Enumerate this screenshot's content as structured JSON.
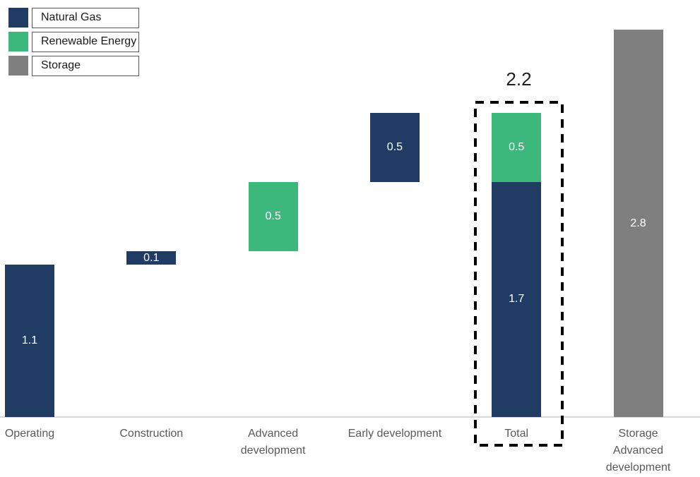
{
  "palette": {
    "natural_gas": "#203C64",
    "renewable_energy": "#3CB87C",
    "storage": "#7F7F7F",
    "axis_line": "#D9D9D9",
    "axis_label_text": "#595959"
  },
  "legend": {
    "items": [
      {
        "label": "Natural Gas",
        "series": "natural_gas"
      },
      {
        "label": "Renewable Energy",
        "series": "renewable_energy"
      },
      {
        "label": "Storage",
        "series": "storage"
      }
    ]
  },
  "chart_data": {
    "type": "bar",
    "subtype": "waterfall-stacked",
    "title": "",
    "xlabel": "",
    "ylabel": "",
    "value_axis_visible": false,
    "gridlines": false,
    "legend_position": "top-left",
    "ylim": [
      0,
      3.0
    ],
    "series_names": [
      "Natural Gas",
      "Renewable Energy",
      "Storage"
    ],
    "categories": [
      {
        "name": "Operating",
        "label_lines": [
          "Operating"
        ],
        "segments": [
          {
            "series": "natural_gas",
            "start": 0,
            "end": 1.1,
            "label": "1.1"
          }
        ]
      },
      {
        "name": "Construction",
        "label_lines": [
          "Construction"
        ],
        "segments": [
          {
            "series": "natural_gas",
            "start": 1.1,
            "end": 1.2,
            "label": "0.1"
          }
        ]
      },
      {
        "name": "Advanced development",
        "label_lines": [
          "Advanced",
          "development"
        ],
        "segments": [
          {
            "series": "renewable_energy",
            "start": 1.2,
            "end": 1.7,
            "label": "0.5"
          }
        ]
      },
      {
        "name": "Early development",
        "label_lines": [
          "Early development"
        ],
        "segments": [
          {
            "series": "natural_gas",
            "start": 1.7,
            "end": 2.2,
            "label": "0.5"
          }
        ]
      },
      {
        "name": "Total",
        "label_lines": [
          "Total"
        ],
        "highlighted": true,
        "segments": [
          {
            "series": "natural_gas",
            "start": 0,
            "end": 1.7,
            "label": "1.7"
          },
          {
            "series": "renewable_energy",
            "start": 1.7,
            "end": 2.2,
            "label": "0.5"
          }
        ]
      },
      {
        "name": "Storage Advanced development",
        "label_lines": [
          "Storage",
          "Advanced",
          "development"
        ],
        "segments": [
          {
            "series": "storage",
            "start": 0,
            "end": 2.8,
            "label": "2.8"
          }
        ]
      }
    ],
    "annotations": [
      {
        "text": "2.2",
        "category": "Total",
        "position": "above"
      }
    ]
  }
}
